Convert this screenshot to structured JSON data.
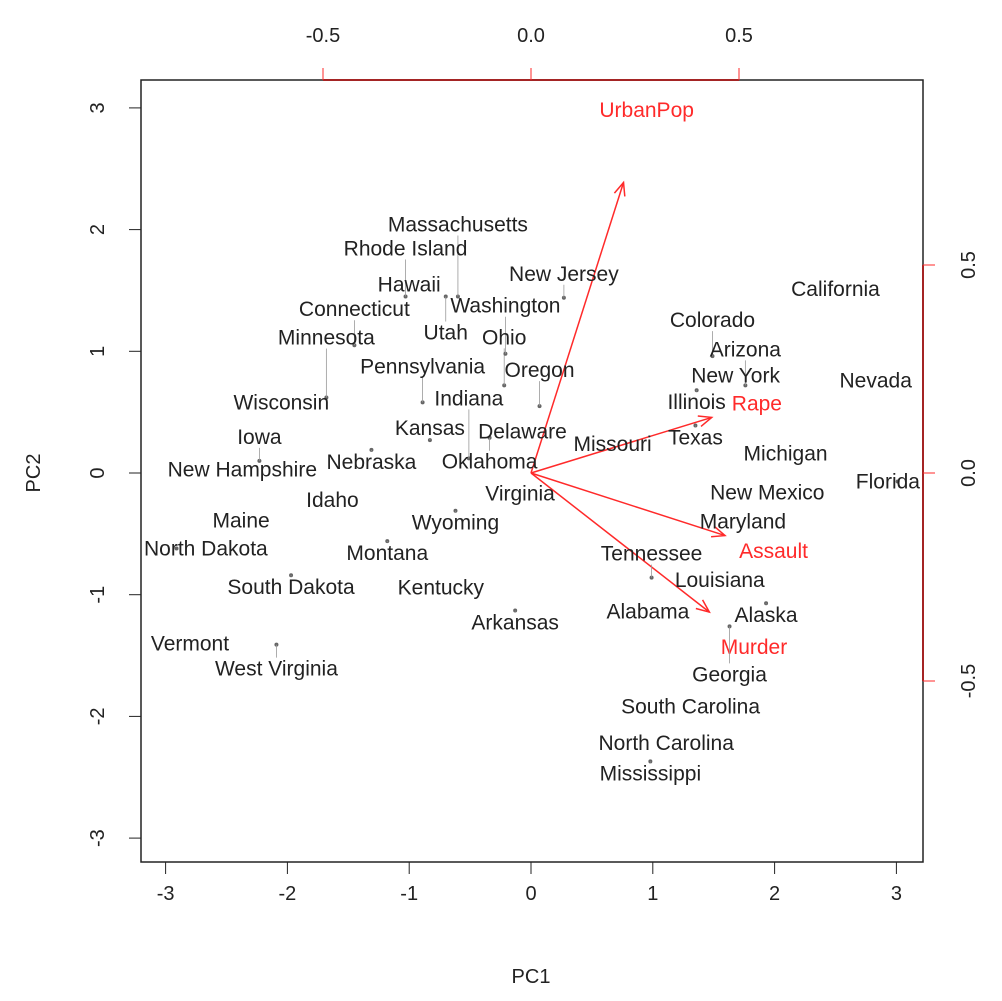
{
  "chart_data": {
    "type": "scatter",
    "subtype": "biplot",
    "xlabel": "PC1",
    "ylabel": "PC2",
    "xlim": [
      -3.2,
      3.2
    ],
    "ylim": [
      -3.2,
      3.2
    ],
    "x_ticks": [
      "-3",
      "-2",
      "-1",
      "0",
      "1",
      "2",
      "3"
    ],
    "y_ticks": [
      "-3",
      "-2",
      "-1",
      "0",
      "1",
      "2",
      "3"
    ],
    "top_ticks": [
      "-0.5",
      "0.0",
      "0.5"
    ],
    "right_ticks": [
      "-0.5",
      "0.0",
      "0.5"
    ],
    "grid": false,
    "loading_color": "#ff2a2a",
    "points": [
      {
        "label": "California",
        "x": 2.5,
        "y": 1.51
      },
      {
        "label": "Nevada",
        "x": 2.83,
        "y": 0.76
      },
      {
        "label": "Florida",
        "x": 3.01,
        "y": -0.07
      },
      {
        "label": "Michigan",
        "x": 2.09,
        "y": 0.16
      },
      {
        "label": "New York",
        "x": 1.68,
        "y": 0.8
      },
      {
        "label": "Arizona",
        "x": 1.76,
        "y": 0.72
      },
      {
        "label": "Illinois",
        "x": 1.36,
        "y": 0.68
      },
      {
        "label": "Colorado",
        "x": 1.49,
        "y": 0.96
      },
      {
        "label": "Texas",
        "x": 1.35,
        "y": 0.39
      },
      {
        "label": "New Mexico",
        "x": 1.94,
        "y": -0.16
      },
      {
        "label": "Maryland",
        "x": 1.74,
        "y": -0.4
      },
      {
        "label": "Louisiana",
        "x": 1.55,
        "y": -0.88
      },
      {
        "label": "Tennessee",
        "x": 0.99,
        "y": -0.86
      },
      {
        "label": "Alaska",
        "x": 1.93,
        "y": -1.07
      },
      {
        "label": "Alabama",
        "x": 0.96,
        "y": -1.14
      },
      {
        "label": "Georgia",
        "x": 1.63,
        "y": -1.26
      },
      {
        "label": "South Carolina",
        "x": 1.31,
        "y": -1.92
      },
      {
        "label": "North Carolina",
        "x": 1.11,
        "y": -2.22
      },
      {
        "label": "Mississippi",
        "x": 0.98,
        "y": -2.37
      },
      {
        "label": "Missouri",
        "x": 0.67,
        "y": 0.24
      },
      {
        "label": "Virginia",
        "x": -0.09,
        "y": -0.17
      },
      {
        "label": "Delaware",
        "x": -0.07,
        "y": 0.34
      },
      {
        "label": "Oklahoma",
        "x": -0.34,
        "y": 0.29
      },
      {
        "label": "Kansas",
        "x": -0.83,
        "y": 0.27
      },
      {
        "label": "Indiana",
        "x": -0.51,
        "y": 0.12
      },
      {
        "label": "Oregon",
        "x": 0.07,
        "y": 0.55
      },
      {
        "label": "Ohio",
        "x": -0.22,
        "y": 0.72
      },
      {
        "label": "Washington",
        "x": -0.21,
        "y": 0.98
      },
      {
        "label": "Pennsylvania",
        "x": -0.89,
        "y": 0.58
      },
      {
        "label": "Nebraska",
        "x": -1.31,
        "y": 0.19
      },
      {
        "label": "Wyoming",
        "x": -0.62,
        "y": -0.31
      },
      {
        "label": "Idaho",
        "x": -1.63,
        "y": -0.22
      },
      {
        "label": "Montana",
        "x": -1.18,
        "y": -0.56
      },
      {
        "label": "Kentucky",
        "x": -0.74,
        "y": -0.94
      },
      {
        "label": "Arkansas",
        "x": -0.13,
        "y": -1.13
      },
      {
        "label": "South Dakota",
        "x": -1.97,
        "y": -0.84
      },
      {
        "label": "North Dakota",
        "x": -2.91,
        "y": -0.62
      },
      {
        "label": "Maine",
        "x": -2.38,
        "y": -0.39
      },
      {
        "label": "New Hampshire",
        "x": -2.37,
        "y": 0.03
      },
      {
        "label": "Iowa",
        "x": -2.23,
        "y": 0.1
      },
      {
        "label": "Vermont",
        "x": -2.8,
        "y": -1.4
      },
      {
        "label": "West Virginia",
        "x": -2.09,
        "y": -1.41
      },
      {
        "label": "Wisconsin",
        "x": -2.05,
        "y": 0.58
      },
      {
        "label": "Minnesota",
        "x": -1.68,
        "y": 0.62
      },
      {
        "label": "Connecticut",
        "x": -1.45,
        "y": 1.05
      },
      {
        "label": "Hawaii",
        "x": -1.0,
        "y": 1.55
      },
      {
        "label": "Rhode Island",
        "x": -1.03,
        "y": 1.45
      },
      {
        "label": "Massachusetts",
        "x": -0.6,
        "y": 1.45
      },
      {
        "label": "Utah",
        "x": -0.7,
        "y": 1.45
      },
      {
        "label": "New Jersey",
        "x": 0.27,
        "y": 1.44
      }
    ],
    "loadings": [
      {
        "label": "Murder",
        "x": 0.536,
        "y": -0.418
      },
      {
        "label": "Assault",
        "x": 0.583,
        "y": -0.188
      },
      {
        "label": "UrbanPop",
        "x": 0.278,
        "y": 0.873
      },
      {
        "label": "Rape",
        "x": 0.543,
        "y": 0.167
      }
    ]
  }
}
